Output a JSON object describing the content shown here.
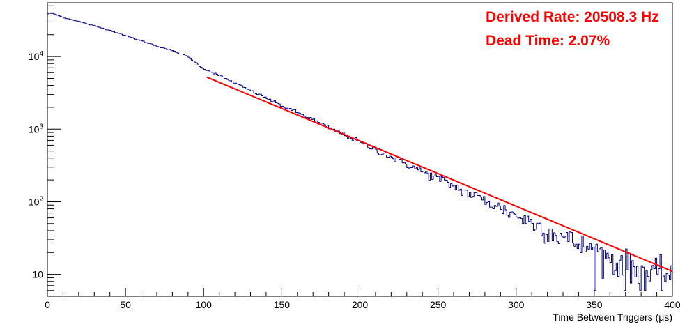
{
  "chart_data": {
    "type": "line",
    "subtype": "step-histogram",
    "title": "",
    "xlabel": "Time Between Triggers (μs)",
    "ylabel": "",
    "xlim": [
      0,
      400
    ],
    "ylim": [
      5,
      55000
    ],
    "yscale": "log",
    "grid": false,
    "x_ticks": [
      0,
      50,
      100,
      150,
      200,
      250,
      300,
      350,
      400
    ],
    "x_tick_labels": [
      "0",
      "50",
      "100",
      "150",
      "200",
      "250",
      "300",
      "350",
      "400"
    ],
    "y_tick_labels": [
      {
        "value": 10,
        "base": "10",
        "exp": ""
      },
      {
        "value": 100,
        "base": "10",
        "exp": "2"
      },
      {
        "value": 1000,
        "base": "10",
        "exp": "3"
      },
      {
        "value": 10000,
        "base": "10",
        "exp": "4"
      }
    ],
    "annotations": [
      "Derived Rate: 20508.3 Hz",
      "Dead Time: 2.07%"
    ],
    "series": [
      {
        "name": "",
        "kind": "histogram",
        "color": "#000080",
        "bin_width": 1,
        "x": [
          0,
          2,
          4,
          6,
          8,
          10,
          15,
          20,
          30,
          40,
          50,
          60,
          70,
          80,
          90,
          100,
          110,
          120,
          130,
          140,
          150,
          160,
          170,
          180,
          190,
          200,
          210,
          220,
          230,
          240,
          250,
          260,
          270,
          280,
          290,
          300,
          310,
          320,
          330,
          340,
          350,
          360,
          370,
          380,
          390,
          400
        ],
        "y": [
          38500,
          39500,
          38800,
          37500,
          36000,
          34500,
          32500,
          30500,
          26500,
          23000,
          19500,
          16500,
          14000,
          12000,
          10000,
          6800,
          5500,
          4300,
          3400,
          2700,
          2100,
          1700,
          1350,
          1050,
          840,
          660,
          520,
          410,
          330,
          260,
          210,
          165,
          130,
          105,
          82,
          65,
          52,
          41,
          33,
          26,
          21,
          17,
          13.5,
          11,
          9,
          11
        ]
      },
      {
        "name": "",
        "kind": "fit",
        "color": "#ff0000",
        "function": "exponential",
        "x_range": [
          102,
          400
        ],
        "y_at_start": 5200,
        "y_at_end": 11
      }
    ]
  }
}
